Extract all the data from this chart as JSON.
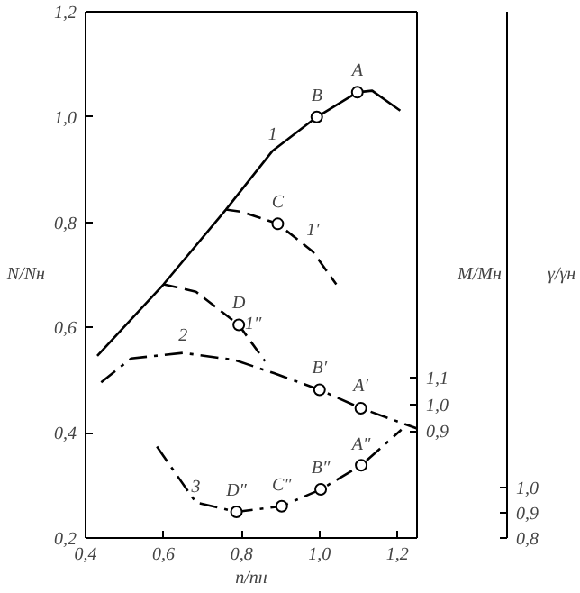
{
  "chart_data": {
    "type": "line",
    "xlabel": "n/nн",
    "ylabel": "N/Nн",
    "y2label": "M/Mн",
    "y3label": "γ/γн",
    "xlim": [
      0.4,
      1.25
    ],
    "xticks": [
      {
        "value": 0.4,
        "label": "0,4"
      },
      {
        "value": 0.6,
        "label": "0,6"
      },
      {
        "value": 0.8,
        "label": "0,8"
      },
      {
        "value": 1.0,
        "label": "1,0"
      },
      {
        "value": 1.2,
        "label": "1,2"
      }
    ],
    "ylim": [
      0.2,
      1.2
    ],
    "yticks": [
      {
        "value": 0.2,
        "label": "0,2"
      },
      {
        "value": 0.4,
        "label": "0,4"
      },
      {
        "value": 0.6,
        "label": "0,6"
      },
      {
        "value": 0.8,
        "label": "0,8"
      },
      {
        "value": 1.0,
        "label": "1,0"
      },
      {
        "value": 1.2,
        "label": "1,2"
      }
    ],
    "y2lim": [
      0.5,
      2.47
    ],
    "y2ticks": [
      {
        "value": 0.9,
        "label": "0,9"
      },
      {
        "value": 1.0,
        "label": "1,0"
      },
      {
        "value": 1.1,
        "label": "1,1"
      }
    ],
    "y3lim": [
      0.8,
      2.89
    ],
    "y3ticks": [
      {
        "value": 0.8,
        "label": "0,8"
      },
      {
        "value": 0.9,
        "label": "0,9"
      },
      {
        "value": 1.0,
        "label": "1,0"
      }
    ],
    "grid": false,
    "series": [
      {
        "color": "#000000",
        "line_style": "solid",
        "x": [
          0.43,
          0.6,
          0.76,
          0.88,
          0.993,
          1.097,
          1.135,
          1.207
        ],
        "values": [
          0.546,
          0.682,
          0.824,
          0.936,
          1.0,
          1.047,
          1.05,
          1.012
        ]
      },
      {
        "color": "#000000",
        "line_style": "dashed",
        "x": [
          0.76,
          0.8,
          0.893,
          0.983,
          1.043
        ],
        "values": [
          0.824,
          0.82,
          0.797,
          0.744,
          0.682
        ]
      },
      {
        "color": "#000000",
        "line_style": "dashed",
        "x": [
          0.6,
          0.683,
          0.793,
          0.86
        ],
        "values": [
          0.682,
          0.668,
          0.605,
          0.536
        ]
      },
      {
        "axis": "y2",
        "color": "#000000",
        "line_style": "dashdot",
        "x": [
          0.44,
          0.517,
          0.65,
          0.783,
          0.883,
          1.0,
          1.106,
          1.25
        ],
        "values": [
          1.083,
          1.172,
          1.193,
          1.166,
          1.117,
          1.055,
          0.986,
          0.91
        ]
      },
      {
        "axis": "y3",
        "color": "#000000",
        "line_style": "dashdot",
        "x": [
          0.583,
          0.683,
          0.787,
          0.903,
          1.003,
          1.107,
          1.21
        ],
        "values": [
          1.163,
          0.941,
          0.904,
          0.926,
          0.993,
          1.089,
          1.23
        ]
      },
      {
        "type": "scatter",
        "color": "#000000",
        "marker": "circle",
        "x": [
          0.793,
          0.893,
          0.993,
          1.097
        ],
        "values": [
          0.605,
          0.797,
          1.0,
          1.047
        ]
      },
      {
        "type": "scatter",
        "axis": "y2",
        "color": "#000000",
        "marker": "circle",
        "x": [
          1.0,
          1.106
        ],
        "values": [
          1.055,
          0.986
        ]
      },
      {
        "type": "scatter",
        "axis": "y3",
        "color": "#000000",
        "marker": "circle",
        "x": [
          0.787,
          0.903,
          1.003,
          1.107
        ],
        "values": [
          0.904,
          0.926,
          0.993,
          1.089
        ]
      }
    ],
    "annotations": [
      {
        "text": "A",
        "x": 1.097,
        "y": 1.047
      },
      {
        "text": "B",
        "x": 0.993,
        "y": 1.0
      },
      {
        "text": "C",
        "x": 0.893,
        "y": 0.797
      },
      {
        "text": "D",
        "x": 0.793,
        "y": 0.605
      },
      {
        "text": "1",
        "x": 0.88,
        "y": 0.936
      },
      {
        "text": "1′",
        "x": 0.983,
        "y": 0.744
      },
      {
        "text": "1″",
        "x": 0.83,
        "y": 0.567
      },
      {
        "text": "2",
        "x": 0.65,
        "y": 0.554
      },
      {
        "text": "B′",
        "x": 1.0,
        "y": 0.483
      },
      {
        "text": "A′",
        "x": 1.106,
        "y": 0.448
      },
      {
        "text": "3",
        "x": 0.683,
        "y": 0.267
      },
      {
        "text": "D″",
        "x": 0.787,
        "y": 0.249
      },
      {
        "text": "C″",
        "x": 0.903,
        "y": 0.26
      },
      {
        "text": "B″",
        "x": 1.003,
        "y": 0.292
      },
      {
        "text": "A″",
        "x": 1.107,
        "y": 0.337
      }
    ]
  }
}
